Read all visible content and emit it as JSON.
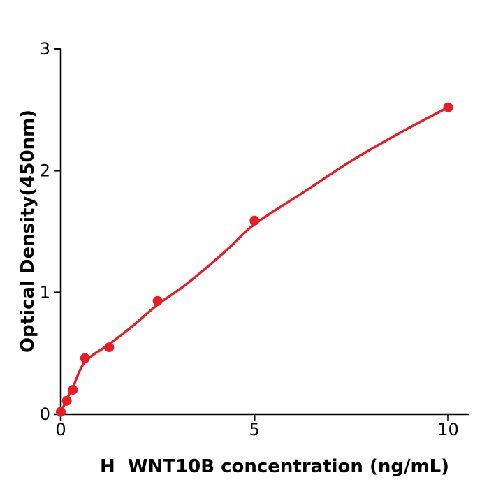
{
  "figure": {
    "background": "#ffffff"
  },
  "chart_data": {
    "type": "scatter",
    "title": "",
    "xlabel": "H  WNT10B concentration (ng/mL)",
    "ylabel": "Optical Density(450nm)",
    "xlim": [
      0,
      10.53
    ],
    "ylim": [
      0,
      3
    ],
    "grid": false,
    "legend": "none",
    "colors": {
      "points": "#e81c24",
      "curve": "#e81c24",
      "axis": "#000000",
      "text": "#000000"
    },
    "x_ticks": [
      {
        "label": "0",
        "value": 0
      },
      {
        "label": "5",
        "value": 5
      },
      {
        "label": "10",
        "value": 10
      }
    ],
    "y_ticks": [
      {
        "label": "0",
        "value": 0
      },
      {
        "label": "1",
        "value": 1
      },
      {
        "label": "2",
        "value": 2
      },
      {
        "label": "3",
        "value": 3
      }
    ],
    "series": [
      {
        "name": "standard-data-points",
        "type": "scatter",
        "x": [
          0,
          0.156,
          0.3125,
          0.625,
          1.25,
          2.5,
          5,
          10
        ],
        "y": [
          0.02,
          0.11,
          0.2,
          0.46,
          0.55,
          0.93,
          1.59,
          2.52
        ]
      },
      {
        "name": "fitted-standard-curve",
        "type": "line",
        "points": [
          [
            0,
            0.01
          ],
          [
            0.156,
            0.125
          ],
          [
            0.3125,
            0.22
          ],
          [
            0.625,
            0.43
          ],
          [
            1.25,
            0.575
          ],
          [
            1.875,
            0.73
          ],
          [
            2.5,
            0.9
          ],
          [
            3.125,
            1.04
          ],
          [
            3.75,
            1.2
          ],
          [
            4.375,
            1.375
          ],
          [
            5,
            1.56
          ],
          [
            6.25,
            1.82
          ],
          [
            7.5,
            2.08
          ],
          [
            8.75,
            2.31
          ],
          [
            10,
            2.52
          ]
        ]
      }
    ]
  }
}
